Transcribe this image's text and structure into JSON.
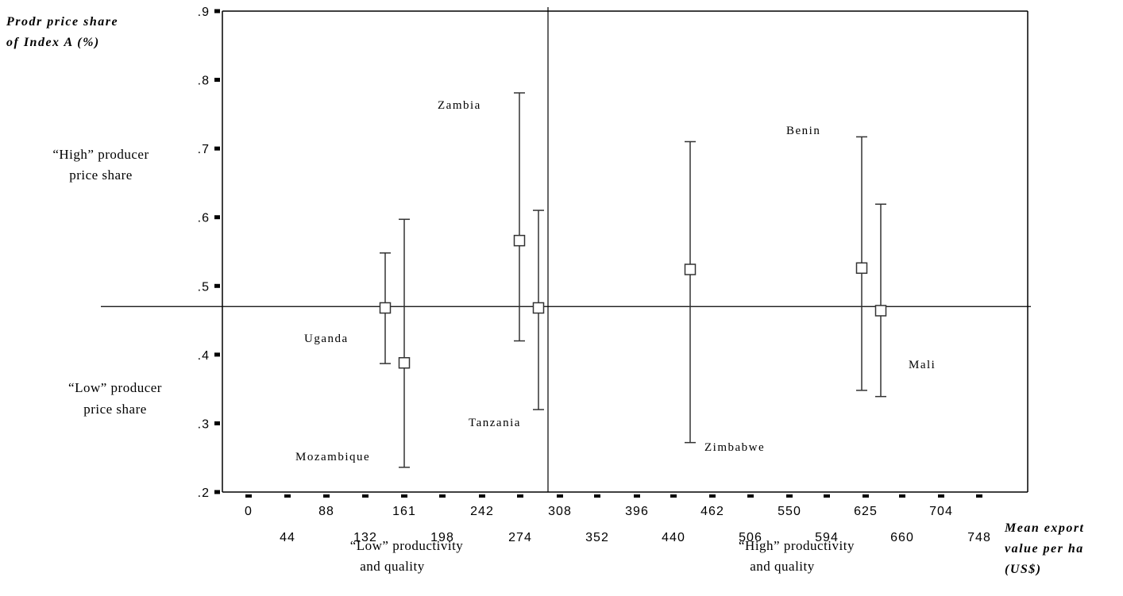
{
  "chart_data": {
    "type": "scatter",
    "title": "",
    "ylabel_lines": [
      "Prodr price share",
      "of Index A (%)"
    ],
    "xlabel_lines": [
      "Mean export",
      "value per ha",
      "(US$)"
    ],
    "ylim": [
      0.2,
      0.9
    ],
    "y_ticks": [
      ".2",
      ".3",
      ".4",
      ".5",
      ".6",
      ".7",
      ".8",
      ".9"
    ],
    "y_tick_values": [
      0.2,
      0.3,
      0.4,
      0.5,
      0.6,
      0.7,
      0.8,
      0.9
    ],
    "x_ticks_upper": [
      "0",
      "88",
      "161",
      "242",
      "308",
      "396",
      "462",
      "550",
      "625",
      "704"
    ],
    "x_ticks_lower": [
      "44",
      "132",
      "198",
      "274",
      "352",
      "440",
      "506",
      "594",
      "660",
      "748"
    ],
    "reference_lines": {
      "horizontal_y": 0.47,
      "vertical_x": 286
    },
    "points": [
      {
        "label": "Uganda",
        "x": 145,
        "y": 0.468,
        "low": 0.387,
        "high": 0.548
      },
      {
        "label": "Mozambique",
        "x": 161,
        "y": 0.388,
        "low": 0.236,
        "high": 0.597
      },
      {
        "label": "Zambia",
        "x": 262,
        "y": 0.566,
        "low": 0.42,
        "high": 0.781
      },
      {
        "label": "Tanzania",
        "x": 279,
        "y": 0.468,
        "low": 0.32,
        "high": 0.61
      },
      {
        "label": "Zimbabwe",
        "x": 454,
        "y": 0.524,
        "low": 0.272,
        "high": 0.71
      },
      {
        "label": "Benin",
        "x": 620,
        "y": 0.526,
        "low": 0.348,
        "high": 0.717
      },
      {
        "label": "Mali",
        "x": 640,
        "y": 0.464,
        "low": 0.339,
        "high": 0.619
      }
    ],
    "annotations": {
      "high_price_lines": [
        "“High” producer",
        "price share"
      ],
      "low_price_lines": [
        "“Low” producer",
        "price share"
      ],
      "low_productivity_lines": [
        "“Low” productivity",
        "and quality"
      ],
      "high_productivity_lines": [
        "“High” productivity",
        "and quality"
      ]
    }
  }
}
